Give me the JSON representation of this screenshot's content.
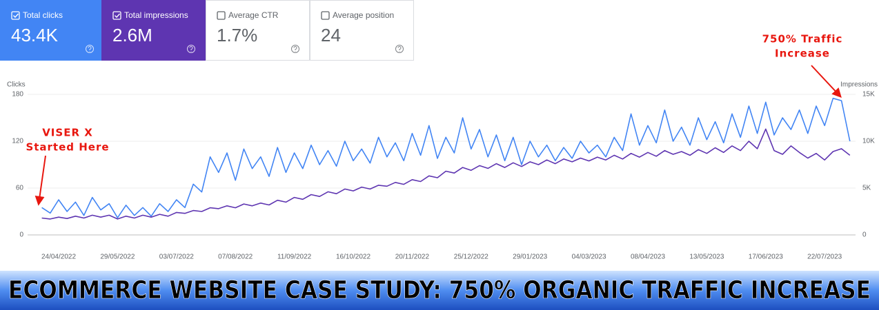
{
  "kpis": [
    {
      "label": "Total clicks",
      "value": "43.4K",
      "checked": true,
      "bg": "#4285f4",
      "fg": "#ffffff"
    },
    {
      "label": "Total impressions",
      "value": "2.6M",
      "checked": true,
      "bg": "#5e35b1",
      "fg": "#ffffff"
    },
    {
      "label": "Average CTR",
      "value": "1.7%",
      "checked": false,
      "bg": "#ffffff",
      "fg": "#5f6368"
    },
    {
      "label": "Average position",
      "value": "24",
      "checked": false,
      "bg": "#ffffff",
      "fg": "#5f6368"
    }
  ],
  "chart_data": {
    "type": "line",
    "y_label": "Clicks",
    "y2_label": "Impressions",
    "categories": [
      null,
      null,
      "24/04/2022",
      null,
      null,
      null,
      null,
      null,
      null,
      "29/05/2022",
      null,
      null,
      null,
      null,
      null,
      null,
      "03/07/2022",
      null,
      null,
      null,
      null,
      null,
      null,
      "07/08/2022",
      null,
      null,
      null,
      null,
      null,
      null,
      "11/09/2022",
      null,
      null,
      null,
      null,
      null,
      null,
      "16/10/2022",
      null,
      null,
      null,
      null,
      null,
      null,
      "20/11/2022",
      null,
      null,
      null,
      null,
      null,
      null,
      "25/12/2022",
      null,
      null,
      null,
      null,
      null,
      null,
      "29/01/2023",
      null,
      null,
      null,
      null,
      null,
      null,
      "04/03/2023",
      null,
      null,
      null,
      null,
      null,
      null,
      "08/04/2023",
      null,
      null,
      null,
      null,
      null,
      null,
      "13/05/2023",
      null,
      null,
      null,
      null,
      null,
      null,
      "17/06/2023",
      null,
      null,
      null,
      null,
      null,
      null,
      "22/07/2023",
      null,
      null,
      null
    ],
    "series": [
      {
        "name": "Clicks",
        "color": "#4285f4",
        "axis": "y",
        "values": [
          35,
          28,
          45,
          30,
          42,
          25,
          48,
          32,
          40,
          22,
          38,
          25,
          35,
          24,
          40,
          30,
          45,
          35,
          65,
          55,
          100,
          80,
          105,
          70,
          110,
          85,
          100,
          75,
          112,
          80,
          105,
          85,
          115,
          90,
          108,
          88,
          120,
          95,
          110,
          92,
          125,
          100,
          118,
          95,
          130,
          102,
          140,
          98,
          125,
          105,
          150,
          110,
          135,
          100,
          128,
          95,
          125,
          90,
          120,
          100,
          115,
          95,
          112,
          98,
          120,
          105,
          115,
          100,
          125,
          108,
          155,
          115,
          140,
          118,
          160,
          120,
          138,
          115,
          150,
          122,
          145,
          118,
          155,
          125,
          165,
          130,
          170,
          128,
          150,
          135,
          160,
          130,
          165,
          140,
          175,
          172,
          120
        ]
      },
      {
        "name": "Impressions",
        "color": "#5e35b1",
        "axis": "y2",
        "values": [
          1800,
          1700,
          1900,
          1750,
          2000,
          1800,
          2100,
          1900,
          2100,
          1700,
          2000,
          1800,
          2100,
          1900,
          2200,
          2000,
          2400,
          2300,
          2600,
          2500,
          2900,
          2800,
          3100,
          2900,
          3300,
          3100,
          3400,
          3200,
          3700,
          3500,
          4000,
          3800,
          4300,
          4100,
          4600,
          4400,
          4900,
          4700,
          5100,
          4900,
          5300,
          5200,
          5600,
          5400,
          5900,
          5700,
          6300,
          6100,
          6800,
          6600,
          7200,
          6900,
          7400,
          7100,
          7600,
          7200,
          7700,
          7300,
          7800,
          7500,
          8000,
          7600,
          8100,
          7800,
          8200,
          7900,
          8300,
          8000,
          8500,
          8100,
          8700,
          8300,
          8800,
          8400,
          9000,
          8600,
          8900,
          8500,
          9100,
          8700,
          9300,
          8800,
          9500,
          9000,
          10000,
          9200,
          11300,
          9000,
          8600,
          9500,
          8800,
          8200,
          8700,
          8000,
          8900,
          9200,
          8500
        ]
      }
    ],
    "ylim": [
      0,
      180
    ],
    "yticks": [
      0,
      60,
      120,
      180
    ],
    "y2lim": [
      0,
      15000
    ],
    "y2ticks": [
      0,
      {
        "value": 5000,
        "label": "5K"
      },
      {
        "value": 10000,
        "label": "10K"
      },
      {
        "value": 15000,
        "label": "15K"
      }
    ],
    "grid": true,
    "annotations": [
      {
        "lines": [
          "VISER X",
          "Started Here"
        ],
        "color": "#e8170f"
      },
      {
        "lines": [
          "750% Traffic",
          "Increase"
        ],
        "color": "#e8170f"
      }
    ]
  },
  "banner": {
    "text": "ECOMMERCE WEBSITE CASE STUDY: 750% ORGANIC TRAFFIC INCREASE"
  }
}
